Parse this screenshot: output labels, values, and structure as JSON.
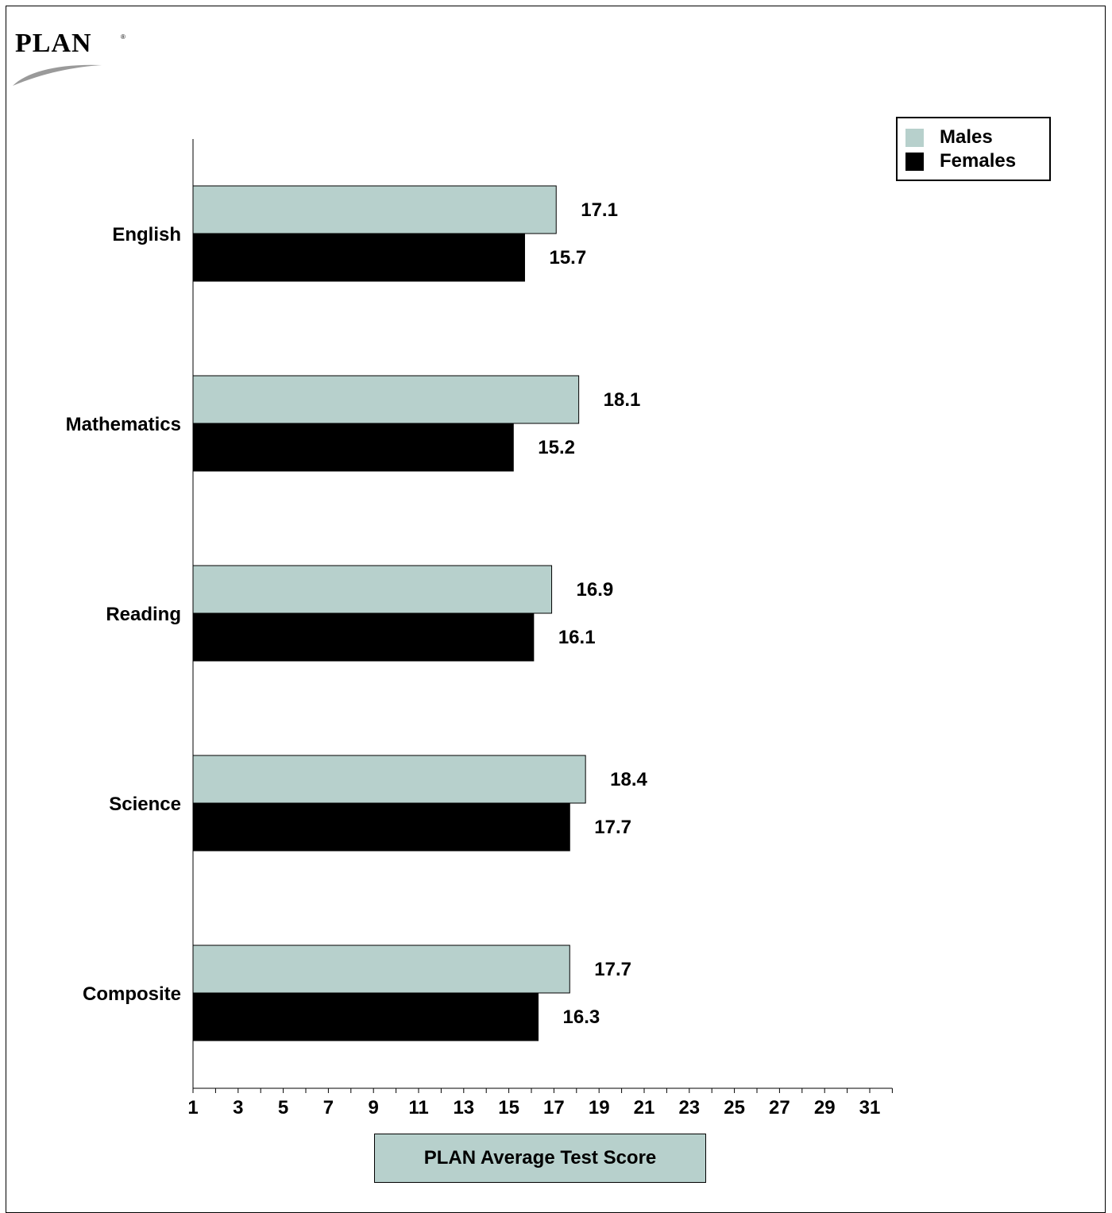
{
  "logo": {
    "text": "PLAN",
    "reg": "®"
  },
  "colors": {
    "males": "#b7d0cc",
    "females": "#000000",
    "axis": "#000000"
  },
  "chart_data": {
    "type": "bar",
    "orientation": "horizontal",
    "categories": [
      "English",
      "Mathematics",
      "Reading",
      "Science",
      "Composite"
    ],
    "series": [
      {
        "name": "Males",
        "color": "#b7d0cc",
        "values": [
          17.1,
          18.1,
          16.9,
          18.4,
          17.7
        ],
        "labels": [
          "17.1",
          "18.1",
          "16.9",
          "18.4",
          "17.7"
        ]
      },
      {
        "name": "Females",
        "color": "#000000",
        "values": [
          15.7,
          15.2,
          16.1,
          17.7,
          16.3
        ],
        "labels": [
          "15.7",
          "15.2",
          "16.1",
          "17.7",
          "16.3"
        ]
      }
    ],
    "xlabel": "PLAN Average Test Score",
    "ylabel": "",
    "xlim": [
      1,
      32
    ],
    "xticks": [
      1,
      3,
      5,
      7,
      9,
      11,
      13,
      15,
      17,
      19,
      21,
      23,
      25,
      27,
      29,
      31
    ],
    "xtick_labels": [
      "1",
      "3",
      "5",
      "7",
      "9",
      "11",
      "13",
      "15",
      "17",
      "19",
      "21",
      "23",
      "25",
      "27",
      "29",
      "31"
    ],
    "grid": false,
    "legend_position": "top-right"
  }
}
